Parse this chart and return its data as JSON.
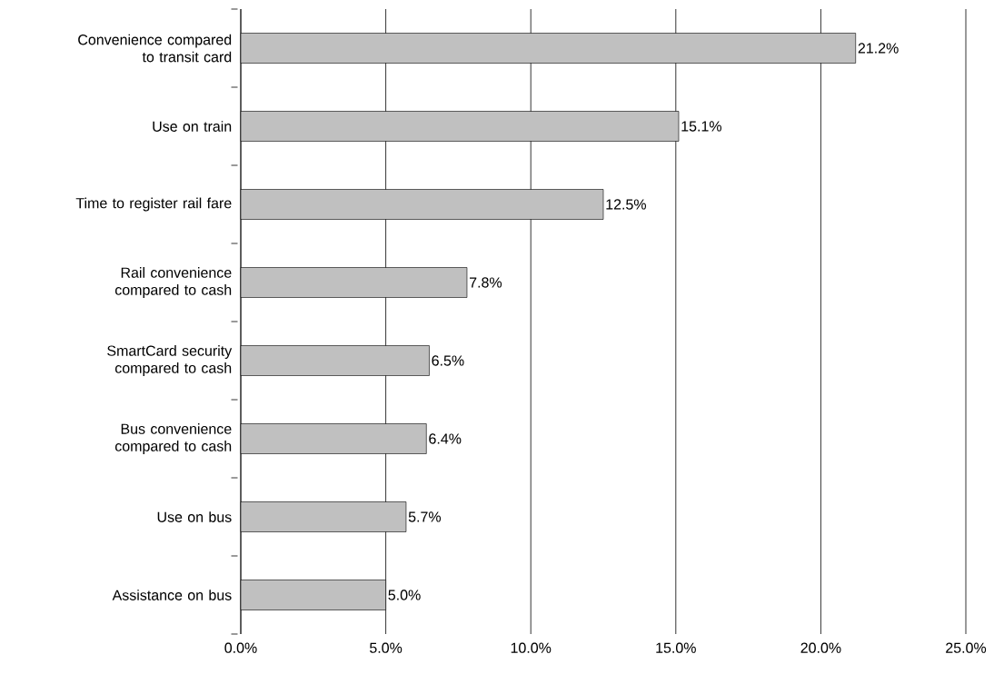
{
  "chart_data": {
    "type": "bar",
    "orientation": "horizontal",
    "categories": [
      "Convenience compared to transit card",
      "Use on train",
      "Time to register rail fare",
      "Rail convenience compared to cash",
      "SmartCard security compared to cash",
      "Bus convenience compared to cash",
      "Use on bus",
      "Assistance on bus"
    ],
    "values": [
      21.2,
      15.1,
      12.5,
      7.8,
      6.5,
      6.4,
      5.7,
      5.0
    ],
    "value_labels": [
      "21.2%",
      "15.1%",
      "12.5%",
      "7.8%",
      "6.5%",
      "6.4%",
      "5.7%",
      "5.0%"
    ],
    "color": "#c0c0c0",
    "xlim": [
      0,
      25
    ],
    "xticks": [
      {
        "value": 0,
        "label": "0.0%"
      },
      {
        "value": 5,
        "label": "5.0%"
      },
      {
        "value": 10,
        "label": "10.0%"
      },
      {
        "value": 15,
        "label": "15.0%"
      },
      {
        "value": 20,
        "label": "20.0%"
      },
      {
        "value": 25,
        "label": "25.0%"
      }
    ],
    "grid": "x"
  }
}
